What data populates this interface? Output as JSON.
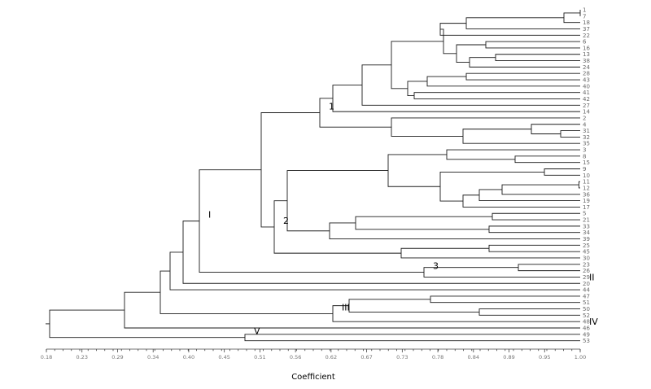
{
  "chart_data": {
    "type": "dendrogram",
    "xlabel": "Coefficient",
    "xlim": [
      0.18,
      1.0
    ],
    "ticks": [
      "0.18",
      "0.23",
      "0.29",
      "0.34",
      "0.40",
      "0.45",
      "0.51",
      "0.56",
      "0.62",
      "0.67",
      "0.73",
      "0.78",
      "0.84",
      "0.89",
      "0.95",
      "1.00"
    ],
    "leaves": [
      "1",
      "7",
      "18",
      "37",
      "22",
      "6",
      "16",
      "13",
      "38",
      "24",
      "28",
      "43",
      "40",
      "41",
      "42",
      "27",
      "14",
      "2",
      "4",
      "31",
      "32",
      "35",
      "3",
      "8",
      "15",
      "9",
      "10",
      "11",
      "12",
      "36",
      "19",
      "17",
      "5",
      "21",
      "33",
      "34",
      "39",
      "25",
      "45",
      "30",
      "23",
      "26",
      "29",
      "20",
      "44",
      "47",
      "51",
      "50",
      "52",
      "48",
      "46",
      "49",
      "53"
    ],
    "merges": [
      {
        "children": [
          "1",
          "7"
        ],
        "h": 1.0
      },
      {
        "children": [
          "m0",
          "18"
        ],
        "h": 0.975
      },
      {
        "children": [
          "m1",
          "37"
        ],
        "h": 0.825
      },
      {
        "children": [
          "m2",
          "22"
        ],
        "h": 0.785
      },
      {
        "children": [
          "6",
          "16"
        ],
        "h": 0.855
      },
      {
        "children": [
          "13",
          "38"
        ],
        "h": 0.87
      },
      {
        "children": [
          "m5",
          "24"
        ],
        "h": 0.83
      },
      {
        "children": [
          "m4",
          "m6"
        ],
        "h": 0.81
      },
      {
        "children": [
          "m3",
          "m7"
        ],
        "h": 0.79
      },
      {
        "children": [
          "28",
          "43"
        ],
        "h": 0.825
      },
      {
        "children": [
          "m9",
          "40"
        ],
        "h": 0.765
      },
      {
        "children": [
          "41",
          "42"
        ],
        "h": 0.745
      },
      {
        "children": [
          "m10",
          "m11"
        ],
        "h": 0.735
      },
      {
        "children": [
          "m8",
          "m12"
        ],
        "h": 0.71
      },
      {
        "children": [
          "m13",
          "27"
        ],
        "h": 0.665
      },
      {
        "children": [
          "m14",
          "14"
        ],
        "h": 0.62
      },
      {
        "children": [
          "31",
          "32"
        ],
        "h": 0.97
      },
      {
        "children": [
          "4",
          "m16"
        ],
        "h": 0.925
      },
      {
        "children": [
          "m17",
          "35"
        ],
        "h": 0.82
      },
      {
        "children": [
          "2",
          "m18"
        ],
        "h": 0.71
      },
      {
        "children": [
          "m15",
          "m19"
        ],
        "h": 0.6
      },
      {
        "children": [
          "8",
          "15"
        ],
        "h": 0.9
      },
      {
        "children": [
          "3",
          "m21"
        ],
        "h": 0.795
      },
      {
        "children": [
          "9",
          "10"
        ],
        "h": 0.945
      },
      {
        "children": [
          "11",
          "12"
        ],
        "h": 0.998
      },
      {
        "children": [
          "m24",
          "36"
        ],
        "h": 0.88
      },
      {
        "children": [
          "m25",
          "19"
        ],
        "h": 0.845
      },
      {
        "children": [
          "m26",
          "17"
        ],
        "h": 0.82
      },
      {
        "children": [
          "m23",
          "m27"
        ],
        "h": 0.785
      },
      {
        "children": [
          "m22",
          "m28"
        ],
        "h": 0.705
      },
      {
        "children": [
          "33",
          "34"
        ],
        "h": 0.86
      },
      {
        "children": [
          "5",
          "21"
        ],
        "h": 0.865
      },
      {
        "children": [
          "m31",
          "m30"
        ],
        "h": 0.655
      },
      {
        "children": [
          "m32",
          "39"
        ],
        "h": 0.615
      },
      {
        "children": [
          "m29",
          "m33"
        ],
        "h": 0.55
      },
      {
        "children": [
          "25",
          "45"
        ],
        "h": 0.86
      },
      {
        "children": [
          "m35",
          "30"
        ],
        "h": 0.725
      },
      {
        "children": [
          "m34",
          "m36"
        ],
        "h": 0.53
      },
      {
        "children": [
          "m20",
          "m37"
        ],
        "h": 0.51
      },
      {
        "children": [
          "23",
          "26"
        ],
        "h": 0.905
      },
      {
        "children": [
          "m39",
          "29"
        ],
        "h": 0.76
      },
      {
        "children": [
          "m38",
          "m40"
        ],
        "h": 0.415
      },
      {
        "children": [
          "m41",
          "20"
        ],
        "h": 0.39
      },
      {
        "children": [
          "47",
          "51"
        ],
        "h": 0.77
      },
      {
        "children": [
          "50",
          "52"
        ],
        "h": 0.845
      },
      {
        "children": [
          "m43",
          "m44"
        ],
        "h": 0.645
      },
      {
        "children": [
          "m45",
          "48"
        ],
        "h": 0.62
      },
      {
        "children": [
          "m42",
          "44"
        ],
        "h": 0.37
      },
      {
        "children": [
          "m47",
          "m46"
        ],
        "h": 0.355
      },
      {
        "children": [
          "m48",
          "46"
        ],
        "h": 0.3
      },
      {
        "children": [
          "49",
          "53"
        ],
        "h": 0.485
      },
      {
        "children": [
          "m49",
          "m50"
        ],
        "h": 0.185
      }
    ],
    "cluster_labels": [
      {
        "text": "1",
        "node": "m20"
      },
      {
        "text": "2",
        "node": "m37"
      },
      {
        "text": "3",
        "node": "m40"
      },
      {
        "text": "I",
        "node": "m41"
      },
      {
        "text": "II",
        "node": "20"
      },
      {
        "text": "III",
        "node": "m46"
      },
      {
        "text": "IV",
        "node": "46"
      },
      {
        "text": "V",
        "node": "m50"
      }
    ]
  }
}
